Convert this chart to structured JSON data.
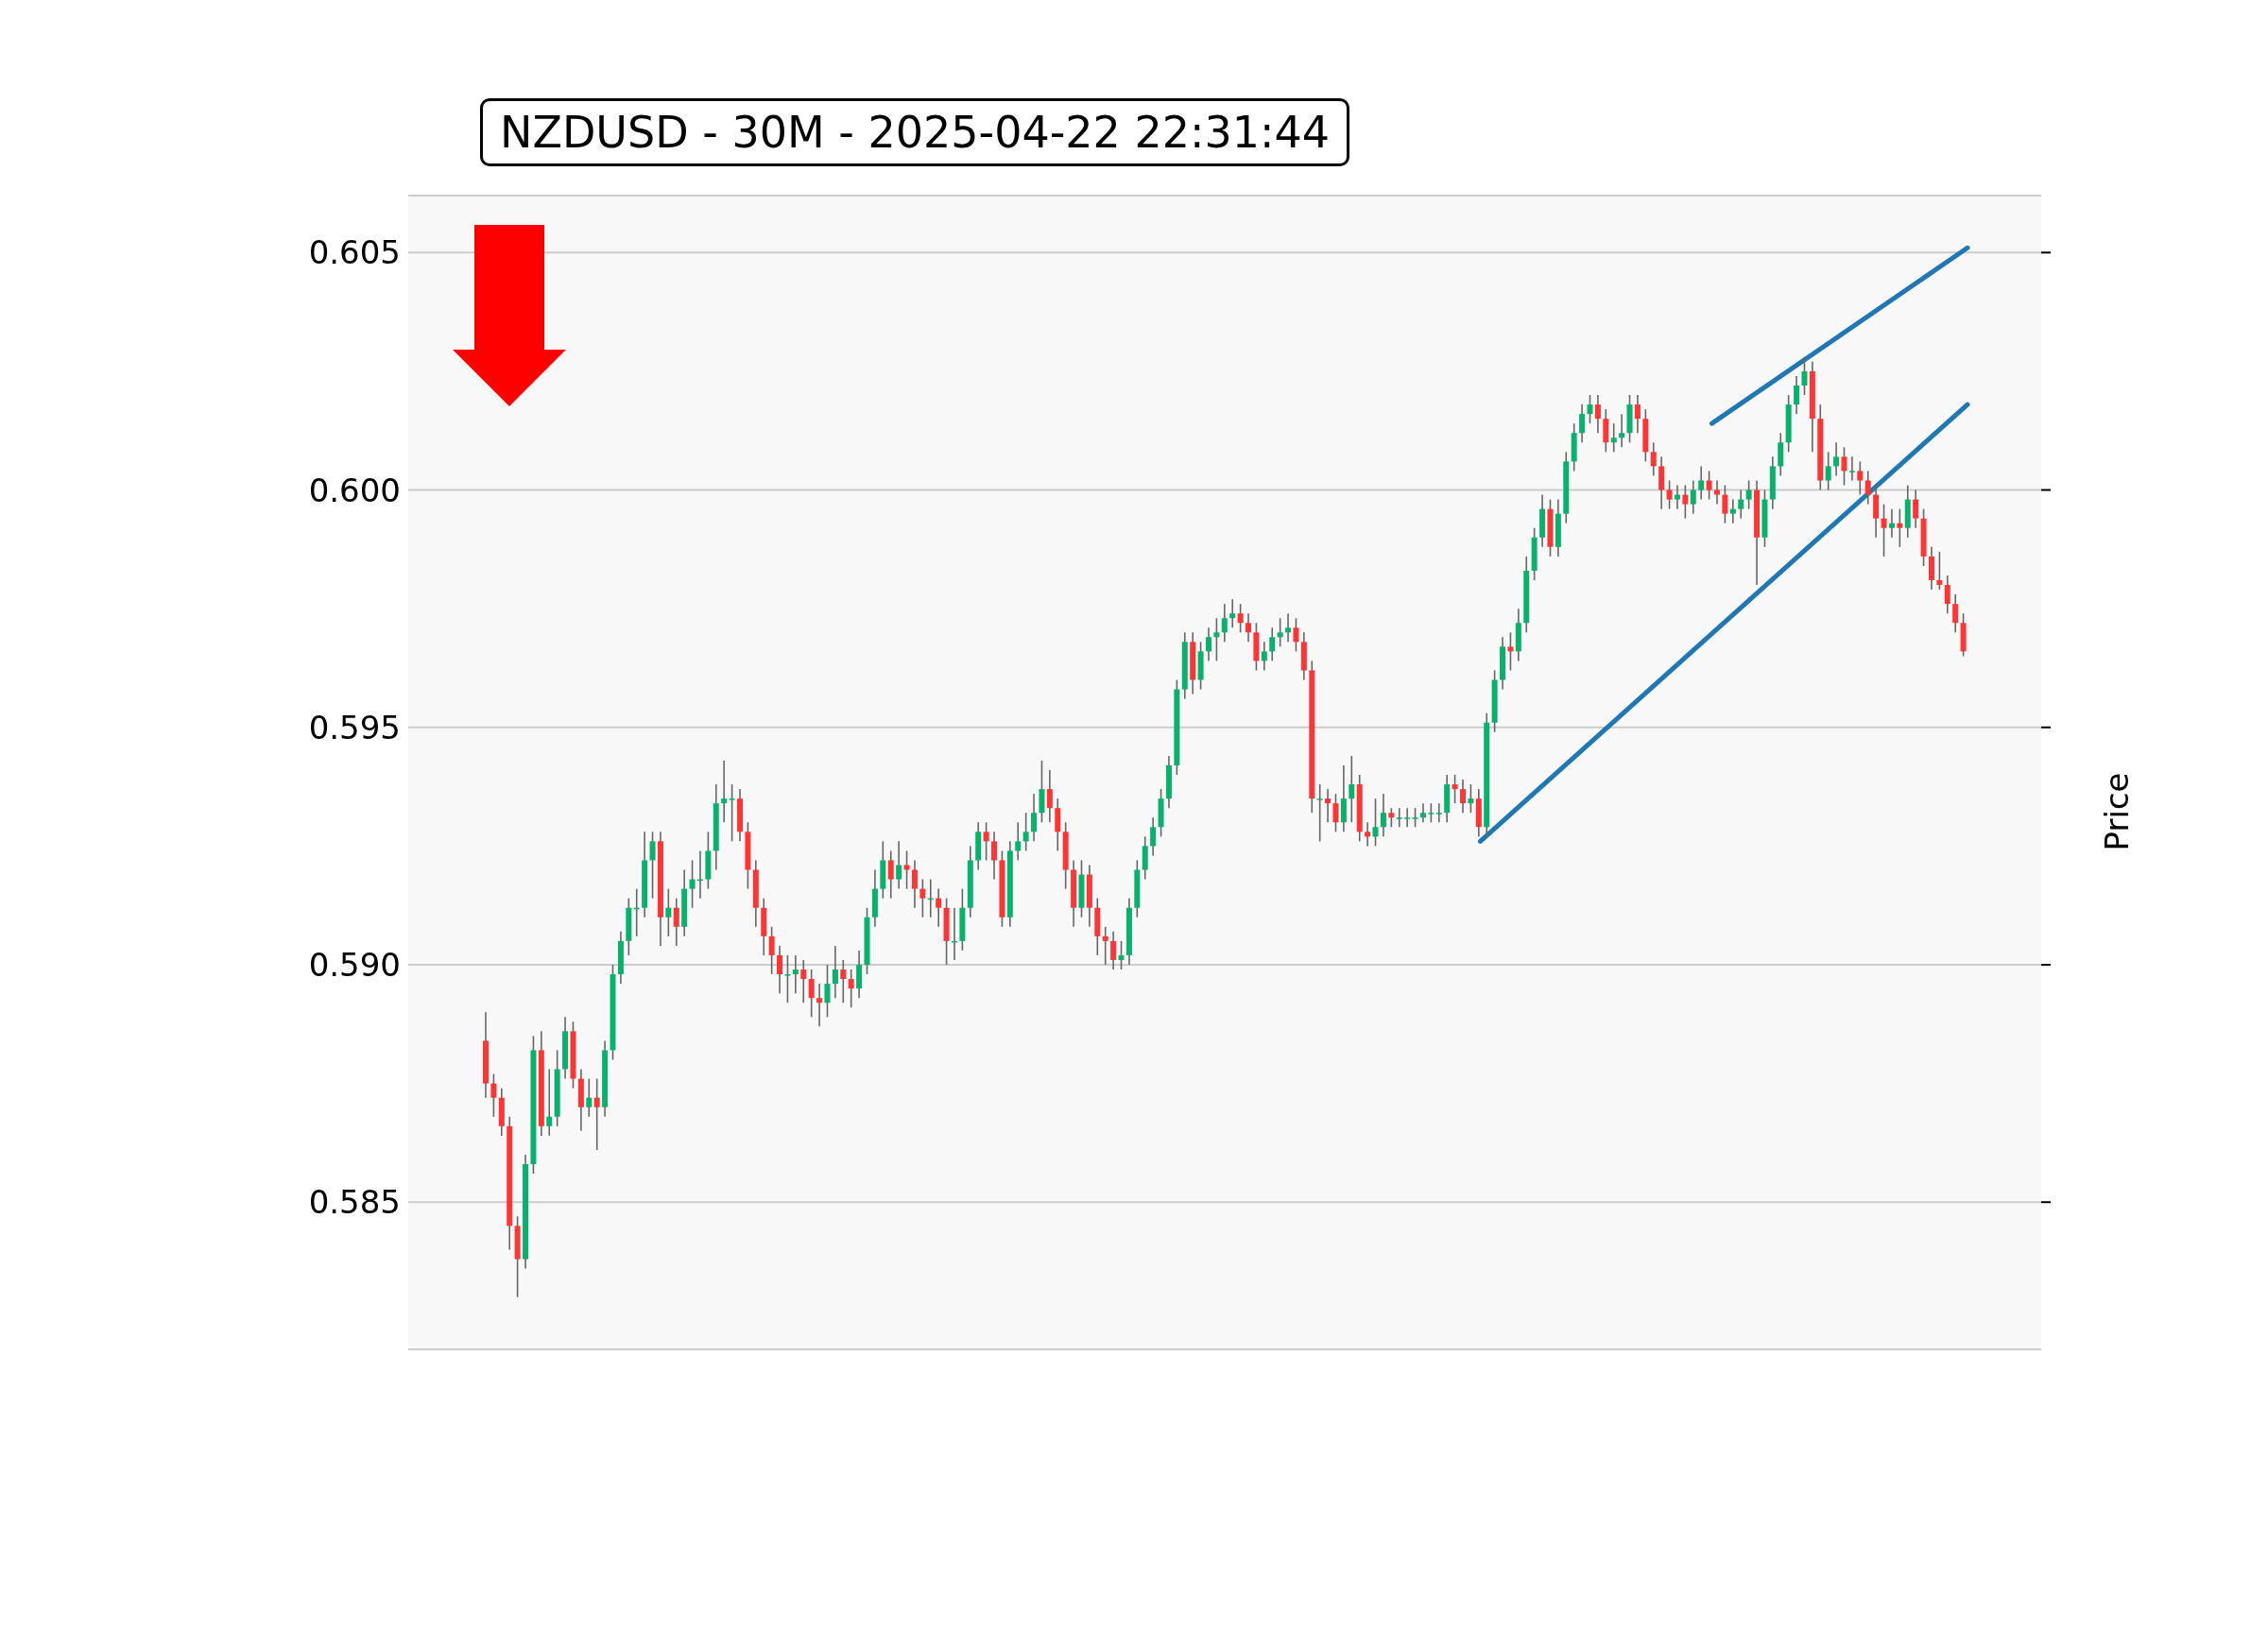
{
  "chart_data": {
    "type": "candlestick",
    "title": "NZDUSD - 30M - 2025-04-22 22:31:44",
    "ylabel": "Price",
    "categories": [
      null,
      null,
      null,
      null,
      null,
      null,
      null,
      null,
      null,
      null,
      null,
      null,
      null,
      null,
      null,
      null,
      null,
      null,
      null,
      null,
      null,
      null,
      null,
      null,
      null,
      null,
      null,
      null,
      null,
      null,
      null,
      null,
      null,
      null,
      null,
      null,
      null,
      null,
      null,
      null,
      null,
      null,
      null,
      null,
      null,
      null,
      null,
      null,
      null,
      null,
      null,
      null,
      null,
      null,
      null,
      null,
      null,
      null,
      null,
      null,
      null,
      null,
      null,
      null,
      null,
      null,
      null,
      null,
      null,
      null,
      null,
      null,
      null,
      null,
      null,
      null,
      null,
      null,
      null,
      null,
      null,
      null,
      null,
      null,
      null,
      null,
      null,
      null,
      null,
      null,
      null,
      null,
      null,
      null,
      null,
      null,
      null,
      null,
      null,
      null,
      null,
      null,
      null,
      null,
      null,
      null,
      null,
      null,
      null,
      null,
      null,
      null,
      null,
      null,
      null,
      null,
      null,
      null,
      null,
      null,
      null,
      null,
      null,
      null,
      null,
      null,
      null,
      null,
      null,
      null,
      null,
      null,
      null,
      null,
      null,
      null,
      null,
      null,
      null,
      null,
      null,
      null,
      null,
      null,
      null,
      null,
      null,
      null,
      null,
      null,
      null,
      null,
      null,
      null,
      null,
      null,
      null,
      null,
      null,
      null,
      null,
      null,
      null,
      null,
      null,
      null,
      null,
      null,
      null,
      null,
      null,
      null,
      null,
      null,
      null,
      null,
      null,
      null,
      null,
      null,
      null,
      null,
      null,
      null,
      null,
      null,
      null
    ],
    "ohlc": [
      [
        0.5884,
        0.589,
        0.5872,
        0.5875
      ],
      [
        0.5875,
        0.5877,
        0.5868,
        0.5872
      ],
      [
        0.5872,
        0.5874,
        0.5864,
        0.5866
      ],
      [
        0.5866,
        0.5868,
        0.584,
        0.5845
      ],
      [
        0.5845,
        0.5847,
        0.583,
        0.5838
      ],
      [
        0.5838,
        0.586,
        0.5836,
        0.5858
      ],
      [
        0.5858,
        0.5885,
        0.5856,
        0.5882
      ],
      [
        0.5882,
        0.5886,
        0.5864,
        0.5866
      ],
      [
        0.5866,
        0.5878,
        0.5864,
        0.5868
      ],
      [
        0.5868,
        0.5882,
        0.5866,
        0.5878
      ],
      [
        0.5878,
        0.5889,
        0.5876,
        0.5886
      ],
      [
        0.5886,
        0.5888,
        0.5874,
        0.5876
      ],
      [
        0.5876,
        0.5878,
        0.5865,
        0.587
      ],
      [
        0.587,
        0.5876,
        0.5868,
        0.5872
      ],
      [
        0.5872,
        0.5876,
        0.5861,
        0.587
      ],
      [
        0.587,
        0.5884,
        0.5868,
        0.5882
      ],
      [
        0.5882,
        0.59,
        0.588,
        0.5898
      ],
      [
        0.5898,
        0.5907,
        0.5896,
        0.5905
      ],
      [
        0.5905,
        0.5914,
        0.5902,
        0.5912
      ],
      [
        0.5912,
        0.5916,
        0.5906,
        0.5912
      ],
      [
        0.5912,
        0.5928,
        0.591,
        0.5922
      ],
      [
        0.5922,
        0.5928,
        0.5914,
        0.5926
      ],
      [
        0.5926,
        0.5928,
        0.5904,
        0.591
      ],
      [
        0.591,
        0.5916,
        0.5906,
        0.5912
      ],
      [
        0.5912,
        0.5914,
        0.5904,
        0.5908
      ],
      [
        0.5908,
        0.592,
        0.5906,
        0.5916
      ],
      [
        0.5916,
        0.5922,
        0.5912,
        0.5918
      ],
      [
        0.5918,
        0.5924,
        0.5914,
        0.5918
      ],
      [
        0.5918,
        0.5928,
        0.5916,
        0.5924
      ],
      [
        0.5924,
        0.5938,
        0.592,
        0.5934
      ],
      [
        0.5934,
        0.5943,
        0.593,
        0.5935
      ],
      [
        0.5935,
        0.5938,
        0.5926,
        0.5935
      ],
      [
        0.5935,
        0.5937,
        0.5926,
        0.5928
      ],
      [
        0.5928,
        0.593,
        0.5916,
        0.592
      ],
      [
        0.592,
        0.5922,
        0.5908,
        0.5912
      ],
      [
        0.5912,
        0.5914,
        0.5902,
        0.5906
      ],
      [
        0.5906,
        0.5908,
        0.5898,
        0.5902
      ],
      [
        0.5902,
        0.5904,
        0.5894,
        0.5898
      ],
      [
        0.5898,
        0.5902,
        0.5892,
        0.5898
      ],
      [
        0.5898,
        0.5902,
        0.5894,
        0.5899
      ],
      [
        0.5899,
        0.5901,
        0.5892,
        0.5897
      ],
      [
        0.5897,
        0.5899,
        0.5889,
        0.5893
      ],
      [
        0.5893,
        0.5896,
        0.5887,
        0.5892
      ],
      [
        0.5892,
        0.59,
        0.5889,
        0.5896
      ],
      [
        0.5896,
        0.5904,
        0.5893,
        0.5899
      ],
      [
        0.5899,
        0.5901,
        0.5892,
        0.5897
      ],
      [
        0.5897,
        0.5899,
        0.5891,
        0.5895
      ],
      [
        0.5895,
        0.5903,
        0.5893,
        0.59
      ],
      [
        0.59,
        0.5912,
        0.5898,
        0.591
      ],
      [
        0.591,
        0.592,
        0.5908,
        0.5916
      ],
      [
        0.5916,
        0.5926,
        0.5914,
        0.5922
      ],
      [
        0.5922,
        0.5924,
        0.5914,
        0.5918
      ],
      [
        0.5918,
        0.5926,
        0.5916,
        0.5921
      ],
      [
        0.5921,
        0.5924,
        0.5916,
        0.592
      ],
      [
        0.592,
        0.5922,
        0.5912,
        0.5916
      ],
      [
        0.5916,
        0.5918,
        0.591,
        0.5914
      ],
      [
        0.5914,
        0.5918,
        0.591,
        0.5914
      ],
      [
        0.5914,
        0.5916,
        0.5908,
        0.5912
      ],
      [
        0.5912,
        0.5914,
        0.59,
        0.5905
      ],
      [
        0.5905,
        0.5912,
        0.5901,
        0.5905
      ],
      [
        0.5905,
        0.5916,
        0.5903,
        0.5912
      ],
      [
        0.5912,
        0.5925,
        0.591,
        0.5922
      ],
      [
        0.5922,
        0.593,
        0.592,
        0.5928
      ],
      [
        0.5928,
        0.593,
        0.5922,
        0.5926
      ],
      [
        0.5926,
        0.5928,
        0.5918,
        0.5922
      ],
      [
        0.5922,
        0.5924,
        0.5908,
        0.591
      ],
      [
        0.591,
        0.5926,
        0.5908,
        0.5924
      ],
      [
        0.5924,
        0.593,
        0.5922,
        0.5926
      ],
      [
        0.5926,
        0.5932,
        0.5924,
        0.5928
      ],
      [
        0.5928,
        0.5936,
        0.5926,
        0.5932
      ],
      [
        0.5932,
        0.5943,
        0.593,
        0.5937
      ],
      [
        0.5937,
        0.5941,
        0.593,
        0.5933
      ],
      [
        0.5933,
        0.5935,
        0.5924,
        0.5928
      ],
      [
        0.5928,
        0.593,
        0.5916,
        0.592
      ],
      [
        0.592,
        0.5922,
        0.5908,
        0.5912
      ],
      [
        0.5912,
        0.5922,
        0.591,
        0.5919
      ],
      [
        0.5919,
        0.5921,
        0.5908,
        0.5912
      ],
      [
        0.5912,
        0.5914,
        0.5902,
        0.5906
      ],
      [
        0.5906,
        0.5908,
        0.59,
        0.5905
      ],
      [
        0.5905,
        0.5907,
        0.5899,
        0.5901
      ],
      [
        0.5901,
        0.5905,
        0.5899,
        0.5902
      ],
      [
        0.5902,
        0.5914,
        0.59,
        0.5912
      ],
      [
        0.5912,
        0.5922,
        0.591,
        0.592
      ],
      [
        0.592,
        0.5927,
        0.5918,
        0.5925
      ],
      [
        0.5925,
        0.5931,
        0.5923,
        0.5929
      ],
      [
        0.5929,
        0.5937,
        0.5927,
        0.5935
      ],
      [
        0.5935,
        0.5944,
        0.5933,
        0.5942
      ],
      [
        0.5942,
        0.596,
        0.594,
        0.5958
      ],
      [
        0.5958,
        0.597,
        0.5956,
        0.5968
      ],
      [
        0.5968,
        0.597,
        0.5957,
        0.596
      ],
      [
        0.596,
        0.5968,
        0.5958,
        0.5966
      ],
      [
        0.5966,
        0.5971,
        0.5964,
        0.5969
      ],
      [
        0.5969,
        0.5973,
        0.5964,
        0.597
      ],
      [
        0.597,
        0.5976,
        0.5968,
        0.5973
      ],
      [
        0.5973,
        0.5977,
        0.5971,
        0.5974
      ],
      [
        0.5974,
        0.5976,
        0.597,
        0.5972
      ],
      [
        0.5972,
        0.5974,
        0.5968,
        0.597
      ],
      [
        0.597,
        0.5972,
        0.5962,
        0.5964
      ],
      [
        0.5964,
        0.5968,
        0.5962,
        0.5966
      ],
      [
        0.5966,
        0.5971,
        0.5964,
        0.5969
      ],
      [
        0.5969,
        0.5973,
        0.5967,
        0.597
      ],
      [
        0.597,
        0.5974,
        0.5968,
        0.5971
      ],
      [
        0.5971,
        0.5973,
        0.5966,
        0.5968
      ],
      [
        0.5968,
        0.597,
        0.596,
        0.5962
      ],
      [
        0.5962,
        0.5964,
        0.5932,
        0.5935
      ],
      [
        0.5935,
        0.5938,
        0.5926,
        0.5935
      ],
      [
        0.5935,
        0.5937,
        0.593,
        0.5934
      ],
      [
        0.5934,
        0.5936,
        0.5928,
        0.593
      ],
      [
        0.593,
        0.5942,
        0.5928,
        0.5935
      ],
      [
        0.5935,
        0.5944,
        0.593,
        0.5938
      ],
      [
        0.5938,
        0.594,
        0.5926,
        0.5928
      ],
      [
        0.5928,
        0.593,
        0.5925,
        0.5927
      ],
      [
        0.5927,
        0.5935,
        0.5925,
        0.5929
      ],
      [
        0.5929,
        0.5936,
        0.5927,
        0.5932
      ],
      [
        0.5932,
        0.5933,
        0.5929,
        0.5931
      ],
      [
        0.5931,
        0.5933,
        0.5929,
        0.5931
      ],
      [
        0.5931,
        0.5933,
        0.5929,
        0.5931
      ],
      [
        0.5931,
        0.5933,
        0.5929,
        0.5931
      ],
      [
        0.5931,
        0.5934,
        0.593,
        0.5932
      ],
      [
        0.5932,
        0.5934,
        0.593,
        0.5932
      ],
      [
        0.5932,
        0.5934,
        0.593,
        0.5932
      ],
      [
        0.5932,
        0.594,
        0.593,
        0.5938
      ],
      [
        0.5938,
        0.594,
        0.5934,
        0.5937
      ],
      [
        0.5937,
        0.5939,
        0.5932,
        0.5934
      ],
      [
        0.5934,
        0.5938,
        0.5932,
        0.5935
      ],
      [
        0.5935,
        0.5937,
        0.5927,
        0.5929
      ],
      [
        0.5929,
        0.5953,
        0.5927,
        0.5951
      ],
      [
        0.5951,
        0.5962,
        0.5949,
        0.596
      ],
      [
        0.596,
        0.5969,
        0.5958,
        0.5967
      ],
      [
        0.5967,
        0.597,
        0.5962,
        0.5966
      ],
      [
        0.5966,
        0.5975,
        0.5964,
        0.5972
      ],
      [
        0.5972,
        0.5986,
        0.597,
        0.5983
      ],
      [
        0.5983,
        0.5992,
        0.5981,
        0.599
      ],
      [
        0.599,
        0.5999,
        0.5988,
        0.5996
      ],
      [
        0.5996,
        0.5998,
        0.5986,
        0.5988
      ],
      [
        0.5988,
        0.5998,
        0.5986,
        0.5995
      ],
      [
        0.5995,
        0.6008,
        0.5993,
        0.6006
      ],
      [
        0.6006,
        0.6014,
        0.6004,
        0.6012
      ],
      [
        0.6012,
        0.6018,
        0.601,
        0.6016
      ],
      [
        0.6016,
        0.602,
        0.6014,
        0.6018
      ],
      [
        0.6018,
        0.602,
        0.6012,
        0.6015
      ],
      [
        0.6015,
        0.6017,
        0.6008,
        0.601
      ],
      [
        0.601,
        0.6014,
        0.6008,
        0.6011
      ],
      [
        0.6011,
        0.6016,
        0.6009,
        0.6012
      ],
      [
        0.6012,
        0.602,
        0.601,
        0.6018
      ],
      [
        0.6018,
        0.602,
        0.6012,
        0.6015
      ],
      [
        0.6015,
        0.6017,
        0.6006,
        0.6008
      ],
      [
        0.6008,
        0.601,
        0.6003,
        0.6005
      ],
      [
        0.6005,
        0.6007,
        0.5996,
        0.6
      ],
      [
        0.6,
        0.6002,
        0.5996,
        0.5998
      ],
      [
        0.5998,
        0.6001,
        0.5996,
        0.5999
      ],
      [
        0.5999,
        0.6001,
        0.5994,
        0.5997
      ],
      [
        0.5997,
        0.6002,
        0.5995,
        0.6
      ],
      [
        0.6,
        0.6005,
        0.5998,
        0.6002
      ],
      [
        0.6002,
        0.6004,
        0.5998,
        0.6
      ],
      [
        0.6,
        0.6002,
        0.5997,
        0.5999
      ],
      [
        0.5999,
        0.6001,
        0.5993,
        0.5995
      ],
      [
        0.5995,
        0.5998,
        0.5993,
        0.5996
      ],
      [
        0.5996,
        0.6,
        0.5994,
        0.5998
      ],
      [
        0.5998,
        0.6002,
        0.5996,
        0.6
      ],
      [
        0.6,
        0.6002,
        0.598,
        0.599
      ],
      [
        0.599,
        0.6,
        0.5988,
        0.5998
      ],
      [
        0.5998,
        0.6007,
        0.5996,
        0.6005
      ],
      [
        0.6005,
        0.6012,
        0.6003,
        0.601
      ],
      [
        0.601,
        0.602,
        0.6008,
        0.6018
      ],
      [
        0.6018,
        0.6024,
        0.6016,
        0.6022
      ],
      [
        0.6022,
        0.6028,
        0.602,
        0.6025
      ],
      [
        0.6025,
        0.6027,
        0.6008,
        0.6015
      ],
      [
        0.6015,
        0.6018,
        0.6,
        0.6002
      ],
      [
        0.6002,
        0.6008,
        0.6,
        0.6005
      ],
      [
        0.6005,
        0.601,
        0.6003,
        0.6007
      ],
      [
        0.6007,
        0.6009,
        0.6001,
        0.6004
      ],
      [
        0.6004,
        0.6007,
        0.6002,
        0.6004
      ],
      [
        0.6004,
        0.6006,
        0.5999,
        0.6002
      ],
      [
        0.6002,
        0.6004,
        0.5997,
        0.5999
      ],
      [
        0.5999,
        0.6001,
        0.599,
        0.5994
      ],
      [
        0.5994,
        0.5997,
        0.5986,
        0.5992
      ],
      [
        0.5992,
        0.5996,
        0.599,
        0.5993
      ],
      [
        0.5993,
        0.5996,
        0.5988,
        0.5992
      ],
      [
        0.5992,
        0.6001,
        0.599,
        0.5998
      ],
      [
        0.5998,
        0.6,
        0.5992,
        0.5994
      ],
      [
        0.5994,
        0.5996,
        0.5984,
        0.5986
      ],
      [
        0.5986,
        0.5988,
        0.5979,
        0.5981
      ],
      [
        0.5981,
        0.5987,
        0.5979,
        0.598
      ],
      [
        0.598,
        0.5982,
        0.5974,
        0.5976
      ],
      [
        0.5976,
        0.5978,
        0.597,
        0.5972
      ],
      [
        0.5972,
        0.5974,
        0.5965,
        0.5966
      ]
    ],
    "series": [
      {
        "type": "line",
        "color": "#1f77b4",
        "values": [
          null,
          null,
          null,
          null,
          null,
          null,
          null,
          null,
          null,
          null,
          null,
          null,
          null,
          null,
          null,
          null,
          null,
          null,
          null,
          null,
          null,
          null,
          null,
          null,
          null,
          null,
          null,
          null,
          null,
          null,
          null,
          null,
          null,
          null,
          null,
          null,
          null,
          null,
          null,
          null,
          null,
          null,
          null,
          null,
          null,
          null,
          null,
          null,
          null,
          null,
          null,
          null,
          null,
          null,
          null,
          null,
          null,
          null,
          null,
          null,
          null,
          null,
          null,
          null,
          null,
          null,
          null,
          null,
          null,
          null,
          null,
          null,
          null,
          null,
          null,
          null,
          null,
          null,
          null,
          null,
          null,
          null,
          null,
          null,
          null,
          null,
          null,
          null,
          null,
          null,
          null,
          null,
          null,
          null,
          null,
          null,
          null,
          null,
          null,
          null,
          null,
          null,
          null,
          null,
          null,
          null,
          null,
          null,
          null,
          null,
          null,
          null,
          null,
          null,
          null,
          null,
          null,
          null,
          null,
          null,
          null,
          null,
          null,
          null,
          null,
          0.5926,
          null,
          null,
          null,
          null,
          null,
          null,
          null,
          null,
          null,
          null,
          null,
          null,
          null,
          null,
          null,
          null,
          null,
          null,
          null,
          null,
          null,
          null,
          null,
          null,
          null,
          null,
          null,
          null,
          null,
          null,
          null,
          null,
          null,
          null,
          null,
          null,
          null,
          null,
          null,
          null,
          null,
          null,
          null,
          null,
          null,
          null,
          null,
          null,
          null,
          null,
          null,
          null,
          null,
          null,
          null,
          null,
          null,
          null,
          null,
          null,
          0.6018
        ]
      },
      {
        "type": "line",
        "color": "#1f77b4",
        "values": [
          null,
          null,
          null,
          null,
          null,
          null,
          null,
          null,
          null,
          null,
          null,
          null,
          null,
          null,
          null,
          null,
          null,
          null,
          null,
          null,
          null,
          null,
          null,
          null,
          null,
          null,
          null,
          null,
          null,
          null,
          null,
          null,
          null,
          null,
          null,
          null,
          null,
          null,
          null,
          null,
          null,
          null,
          null,
          null,
          null,
          null,
          null,
          null,
          null,
          null,
          null,
          null,
          null,
          null,
          null,
          null,
          null,
          null,
          null,
          null,
          null,
          null,
          null,
          null,
          null,
          null,
          null,
          null,
          null,
          null,
          null,
          null,
          null,
          null,
          null,
          null,
          null,
          null,
          null,
          null,
          null,
          null,
          null,
          null,
          null,
          null,
          null,
          null,
          null,
          null,
          null,
          null,
          null,
          null,
          null,
          null,
          null,
          null,
          null,
          null,
          null,
          null,
          null,
          null,
          null,
          null,
          null,
          null,
          null,
          null,
          null,
          null,
          null,
          null,
          null,
          null,
          null,
          null,
          null,
          null,
          null,
          null,
          null,
          null,
          null,
          null,
          null,
          null,
          null,
          null,
          null,
          null,
          null,
          null,
          null,
          null,
          null,
          null,
          null,
          null,
          null,
          null,
          null,
          null,
          null,
          null,
          null,
          null,
          null,
          null,
          null,
          null,
          null,
          null,
          0.6014,
          null,
          null,
          null,
          null,
          null,
          null,
          null,
          null,
          null,
          null,
          null,
          null,
          null,
          null,
          null,
          null,
          null,
          null,
          null,
          null,
          null,
          null,
          null,
          null,
          null,
          null,
          null,
          null,
          null,
          null,
          null,
          0.6051
        ]
      }
    ],
    "ylim": [
      0.5819,
      0.6062
    ],
    "yticks": [
      0.585,
      {
        "value": 0.59,
        "label": "0.590"
      },
      0.595,
      {
        "value": 0.6,
        "label": "0.600"
      },
      0.605
    ],
    "grid": "y",
    "tick_labels": "y"
  }
}
